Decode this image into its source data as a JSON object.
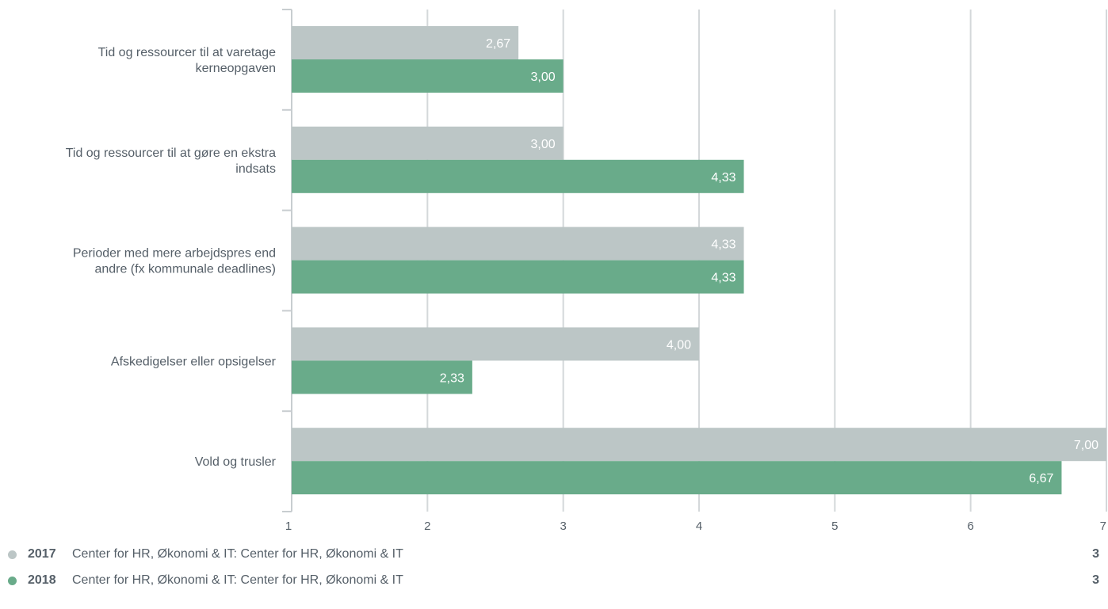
{
  "chart_data": {
    "type": "bar",
    "orientation": "horizontal",
    "categories": [
      [
        "Tid og ressourcer til at varetage",
        "kerneopgaven"
      ],
      [
        "Tid og ressourcer til at gøre en ekstra",
        "indsats"
      ],
      [
        "Perioder med mere arbejdspres end",
        "andre (fx kommunale deadlines)"
      ],
      [
        "Afskedigelser eller opsigelser"
      ],
      [
        "Vold og trusler"
      ]
    ],
    "series": [
      {
        "name": "2017",
        "color": "#bcc6c6",
        "values": [
          2.67,
          3.0,
          4.33,
          4.0,
          7.0
        ],
        "labels": [
          "2,67",
          "3,00",
          "4,33",
          "4,00",
          "7,00"
        ]
      },
      {
        "name": "2018",
        "color": "#69ab8a",
        "values": [
          3.0,
          4.33,
          4.33,
          2.33,
          6.67
        ],
        "labels": [
          "3,00",
          "4,33",
          "4,33",
          "2,33",
          "6,67"
        ]
      }
    ],
    "xlim": [
      1,
      7
    ],
    "xticks": [
      "1",
      "2",
      "3",
      "4",
      "5",
      "6",
      "7"
    ],
    "grid": true,
    "legend_position": "bottom"
  },
  "legend": {
    "items": [
      {
        "year": "2017",
        "name": "Center for HR, Økonomi & IT: Center for HR, Økonomi & IT",
        "count": "3",
        "color": "#bcc6c6"
      },
      {
        "year": "2018",
        "name": "Center for HR, Økonomi & IT: Center for HR, Økonomi & IT",
        "count": "3",
        "color": "#69ab8a"
      }
    ]
  }
}
